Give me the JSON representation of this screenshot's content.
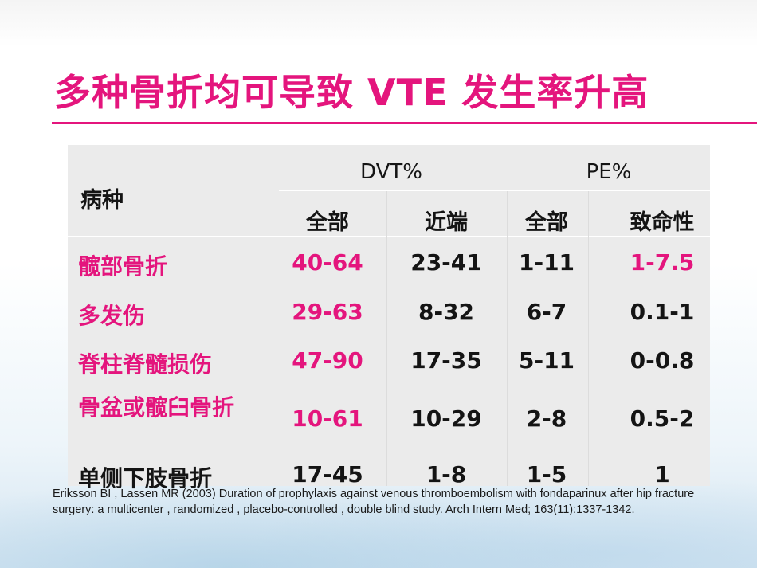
{
  "title": "多种骨折均可导致 VTE 发生率升高",
  "colors": {
    "accent": "#e4157d",
    "text": "#141414",
    "table_bg": "#ebebeb"
  },
  "table": {
    "row_header_label": "病种",
    "groups": [
      "DVT%",
      "PE%"
    ],
    "subheaders": [
      "全部",
      "近端",
      "全部",
      "致命性"
    ],
    "rows": [
      {
        "label": "髋部骨折",
        "values": [
          "40-64",
          "23-41",
          "1-11",
          "1-7.5"
        ]
      },
      {
        "label": "多发伤",
        "values": [
          "29-63",
          "8-32",
          "6-7",
          "0.1-1"
        ]
      },
      {
        "label": "脊柱脊髓损伤",
        "values": [
          "47-90",
          "17-35",
          "5-11",
          "0-0.8"
        ]
      },
      {
        "label": "骨盆或髋臼骨折",
        "values": [
          "10-61",
          "10-29",
          "2-8",
          "0.5-2"
        ]
      },
      {
        "label": "单侧下肢骨折",
        "values": [
          "17-45",
          "1-8",
          "1-5",
          "1"
        ]
      }
    ]
  },
  "citation": "Eriksson BI , Lassen MR (2003) Duration of prophylaxis against venous thromboembolism with fondaparinux after hip fracture surgery: a multicenter , randomized , placebo-controlled , double blind study. Arch Intern Med; 163(11):1337-1342."
}
